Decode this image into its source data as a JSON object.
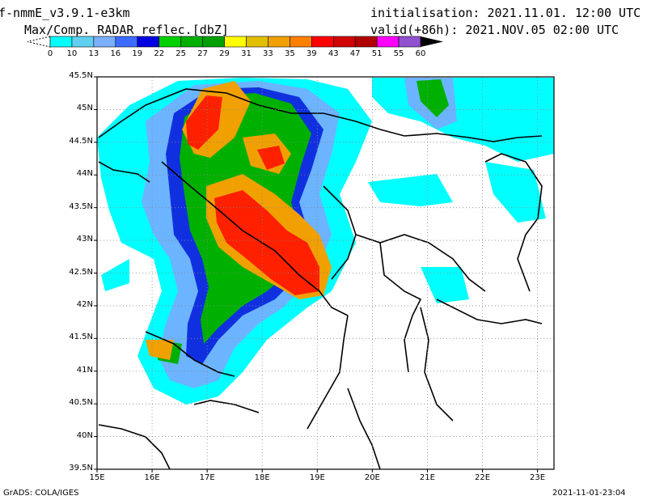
{
  "header": {
    "model": "f-nmmE_v3.9.1-e3km",
    "variable": "Max/Comp. RADAR reflec.[dbZ]",
    "init": "initialisation: 2021.11.01. 12:00 UTC",
    "valid": "valid(+86h): 2021.NOV.05 02:00 UTC"
  },
  "colorbar": {
    "labels": [
      "0",
      "10",
      "13",
      "16",
      "19",
      "22",
      "25",
      "27",
      "29",
      "31",
      "33",
      "35",
      "39",
      "43",
      "47",
      "51",
      "55",
      "60"
    ],
    "colors": [
      "#ffffff",
      "#00ffff",
      "#5fd0f0",
      "#7cb0ff",
      "#3c6cff",
      "#0000e0",
      "#00d000",
      "#00b000",
      "#00a000",
      "#ffff00",
      "#e0c000",
      "#f0a000",
      "#ff8000",
      "#ff0000",
      "#d00000",
      "#b00000",
      "#ff00ff",
      "#9050d0"
    ]
  },
  "map": {
    "lat_labels": [
      "45.5N",
      "45N",
      "44.5N",
      "44N",
      "43.5N",
      "43N",
      "42.5N",
      "42N",
      "41.5N",
      "41N",
      "40.5N",
      "40N",
      "39.5N"
    ],
    "lon_labels": [
      "15E",
      "16E",
      "17E",
      "18E",
      "19E",
      "20E",
      "21E",
      "22E",
      "23E"
    ],
    "lat_range": [
      39.5,
      45.5
    ],
    "lon_range": [
      15.0,
      23.3
    ],
    "grid": "dotted"
  },
  "footer": {
    "left": "GrADS: COLA/IGES",
    "right": "2021-11-01-23:04"
  }
}
